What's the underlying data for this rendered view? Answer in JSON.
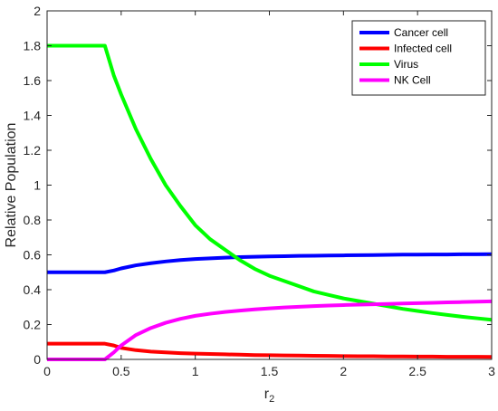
{
  "chart_data": {
    "type": "line",
    "title": "",
    "xlabel": "r",
    "xlabel_subscript": "2",
    "ylabel": "Relative Population",
    "xlim": [
      0,
      3
    ],
    "ylim": [
      0,
      2
    ],
    "xticks": [
      0,
      0.5,
      1,
      1.5,
      2,
      2.5,
      3
    ],
    "xtick_labels": [
      "0",
      "0.5",
      "1",
      "1.5",
      "2",
      "2.5",
      "3"
    ],
    "yticks": [
      0,
      0.2,
      0.4,
      0.6,
      0.8,
      1,
      1.2,
      1.4,
      1.6,
      1.8,
      2
    ],
    "ytick_labels": [
      "0",
      "0.2",
      "0.4",
      "0.6",
      "0.8",
      "1",
      "1.2",
      "1.4",
      "1.6",
      "1.8",
      "2"
    ],
    "grid": false,
    "legend_position": "top-right",
    "x": [
      0,
      0.1,
      0.2,
      0.3,
      0.39,
      0.45,
      0.5,
      0.6,
      0.7,
      0.8,
      0.9,
      1.0,
      1.1,
      1.2,
      1.3,
      1.4,
      1.5,
      1.6,
      1.7,
      1.8,
      1.9,
      2.0,
      2.1,
      2.2,
      2.3,
      2.4,
      2.5,
      2.6,
      2.7,
      2.8,
      2.9,
      3.0
    ],
    "series": [
      {
        "name": "Cancer cell",
        "color": "#0000ff",
        "values": [
          0.5,
          0.5,
          0.5,
          0.5,
          0.5,
          0.51,
          0.522,
          0.54,
          0.552,
          0.562,
          0.57,
          0.576,
          0.58,
          0.584,
          0.587,
          0.589,
          0.591,
          0.592,
          0.594,
          0.595,
          0.596,
          0.597,
          0.598,
          0.599,
          0.6,
          0.601,
          0.601,
          0.602,
          0.602,
          0.603,
          0.603,
          0.604
        ]
      },
      {
        "name": "Infected cell",
        "color": "#ff0000",
        "values": [
          0.09,
          0.09,
          0.09,
          0.09,
          0.09,
          0.08,
          0.066,
          0.053,
          0.045,
          0.04,
          0.036,
          0.033,
          0.031,
          0.029,
          0.027,
          0.025,
          0.024,
          0.023,
          0.022,
          0.021,
          0.02,
          0.019,
          0.018,
          0.018,
          0.017,
          0.017,
          0.016,
          0.016,
          0.015,
          0.015,
          0.015,
          0.014
        ]
      },
      {
        "name": "Virus",
        "color": "#00ff00",
        "values": [
          1.8,
          1.8,
          1.8,
          1.8,
          1.8,
          1.63,
          1.52,
          1.32,
          1.15,
          1.0,
          0.88,
          0.77,
          0.69,
          0.63,
          0.57,
          0.52,
          0.48,
          0.45,
          0.42,
          0.39,
          0.37,
          0.35,
          0.335,
          0.32,
          0.305,
          0.29,
          0.278,
          0.266,
          0.255,
          0.245,
          0.236,
          0.227
        ]
      },
      {
        "name": "NK Cell",
        "color": "#ff00ff",
        "values": [
          0.0,
          0.0,
          0.0,
          0.0,
          0.0,
          0.04,
          0.08,
          0.14,
          0.18,
          0.21,
          0.233,
          0.25,
          0.262,
          0.272,
          0.28,
          0.287,
          0.293,
          0.298,
          0.302,
          0.306,
          0.309,
          0.312,
          0.314,
          0.316,
          0.318,
          0.321,
          0.323,
          0.325,
          0.327,
          0.329,
          0.331,
          0.333
        ]
      }
    ]
  }
}
